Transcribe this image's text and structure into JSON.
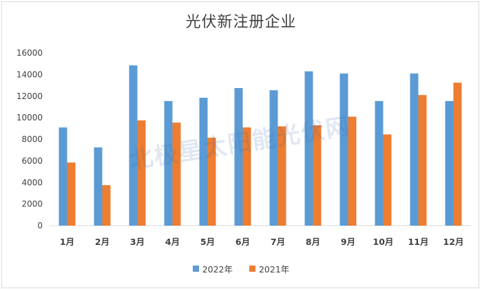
{
  "chart_data": {
    "type": "bar",
    "title": "光伏新注册企业",
    "categories": [
      "1月",
      "2月",
      "3月",
      "4月",
      "5月",
      "6月",
      "7月",
      "8月",
      "9月",
      "10月",
      "11月",
      "12月"
    ],
    "series": [
      {
        "name": "2022年",
        "color": "#5b9bd5",
        "values": [
          9100,
          7250,
          14850,
          11550,
          11850,
          12750,
          12550,
          14300,
          14100,
          11550,
          14100,
          11550
        ]
      },
      {
        "name": "2021年",
        "color": "#ed7d31",
        "values": [
          5850,
          3750,
          9750,
          9550,
          8150,
          9100,
          9200,
          9300,
          10100,
          8450,
          12100,
          13250
        ]
      }
    ],
    "ylim": [
      0,
      16000
    ],
    "yticks": [
      "0",
      "2000",
      "4000",
      "6000",
      "8000",
      "10000",
      "12000",
      "14000",
      "16000"
    ],
    "grid": false,
    "legend_position": "bottom"
  },
  "watermark": {
    "text": "北极星太阳能光伏网"
  }
}
